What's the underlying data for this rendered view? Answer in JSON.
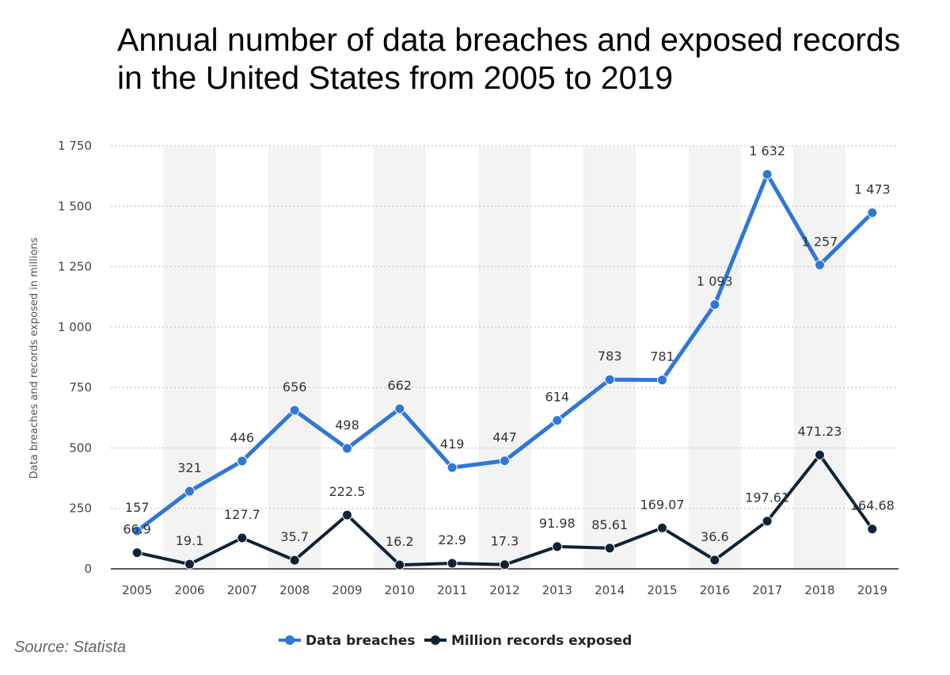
{
  "chart_data": {
    "type": "line",
    "title": "Annual number of data breaches and exposed records in the United States from 2005 to 2019",
    "ylabel": "Data breaches and records exposed in millions",
    "ylim": [
      0,
      1750
    ],
    "yticks": [
      0,
      250,
      500,
      750,
      1000,
      1250,
      1500,
      1750
    ],
    "ytick_labels": [
      "0",
      "250",
      "500",
      "750",
      "1 000",
      "1 250",
      "1 500",
      "1 750"
    ],
    "categories": [
      "2005",
      "2006",
      "2007",
      "2008",
      "2009",
      "2010",
      "2011",
      "2012",
      "2013",
      "2014",
      "2015",
      "2016",
      "2017",
      "2018",
      "2019"
    ],
    "series": [
      {
        "name": "Data breaches",
        "color": "#2f77d6",
        "values": [
          157,
          321,
          446,
          656,
          498,
          662,
          419,
          447,
          614,
          783,
          781,
          1093,
          1632,
          1257,
          1473
        ],
        "labels": [
          "157",
          "321",
          "446",
          "656",
          "498",
          "662",
          "419",
          "447",
          "614",
          "783",
          "781",
          "1 093",
          "1 632",
          "1 257",
          "1 473"
        ]
      },
      {
        "name": "Million records exposed",
        "color": "#0f2236",
        "values": [
          66.9,
          19.1,
          127.7,
          35.7,
          222.5,
          16.2,
          22.9,
          17.3,
          91.98,
          85.61,
          169.07,
          36.6,
          197.61,
          471.23,
          164.68
        ],
        "labels": [
          "66.9",
          "19.1",
          "127.7",
          "35.7",
          "222.5",
          "16.2",
          "22.9",
          "17.3",
          "91.98",
          "85.61",
          "169.07",
          "36.6",
          "197.61",
          "471.23",
          "164.68"
        ]
      }
    ],
    "grid": true,
    "legend": "bottom-center",
    "source": "Source: Statista"
  }
}
